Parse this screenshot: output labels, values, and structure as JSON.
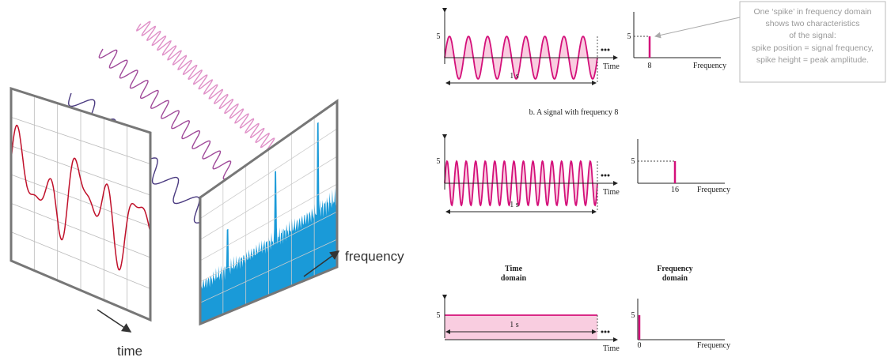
{
  "left": {
    "time_label": "time",
    "frequency_label": "frequency"
  },
  "callout": {
    "lines": [
      "One ‘spike’ in frequency domain",
      "shows two characteristics",
      "of the signal:",
      "spike position = signal frequency,",
      "spike height = peak amplitude."
    ]
  },
  "panels": [
    {
      "amplitude": "5",
      "duration": "1 s",
      "time_axis": "Time",
      "spike_amplitude": "5",
      "spike_frequency": "8",
      "frequency_axis": "Frequency",
      "caption": "b. A signal with frequency 8"
    },
    {
      "amplitude": "5",
      "duration": "1 s",
      "time_axis": "Time",
      "spike_amplitude": "5",
      "spike_frequency": "16",
      "frequency_axis": "Frequency"
    },
    {
      "amplitude": "5",
      "duration": "1 s",
      "time_axis": "Time",
      "spike_amplitude": "5",
      "spike_frequency": "0",
      "frequency_axis": "Frequency",
      "time_header": [
        "Time",
        "domain"
      ],
      "frequency_header": [
        "Frequency",
        "domain"
      ]
    }
  ]
}
